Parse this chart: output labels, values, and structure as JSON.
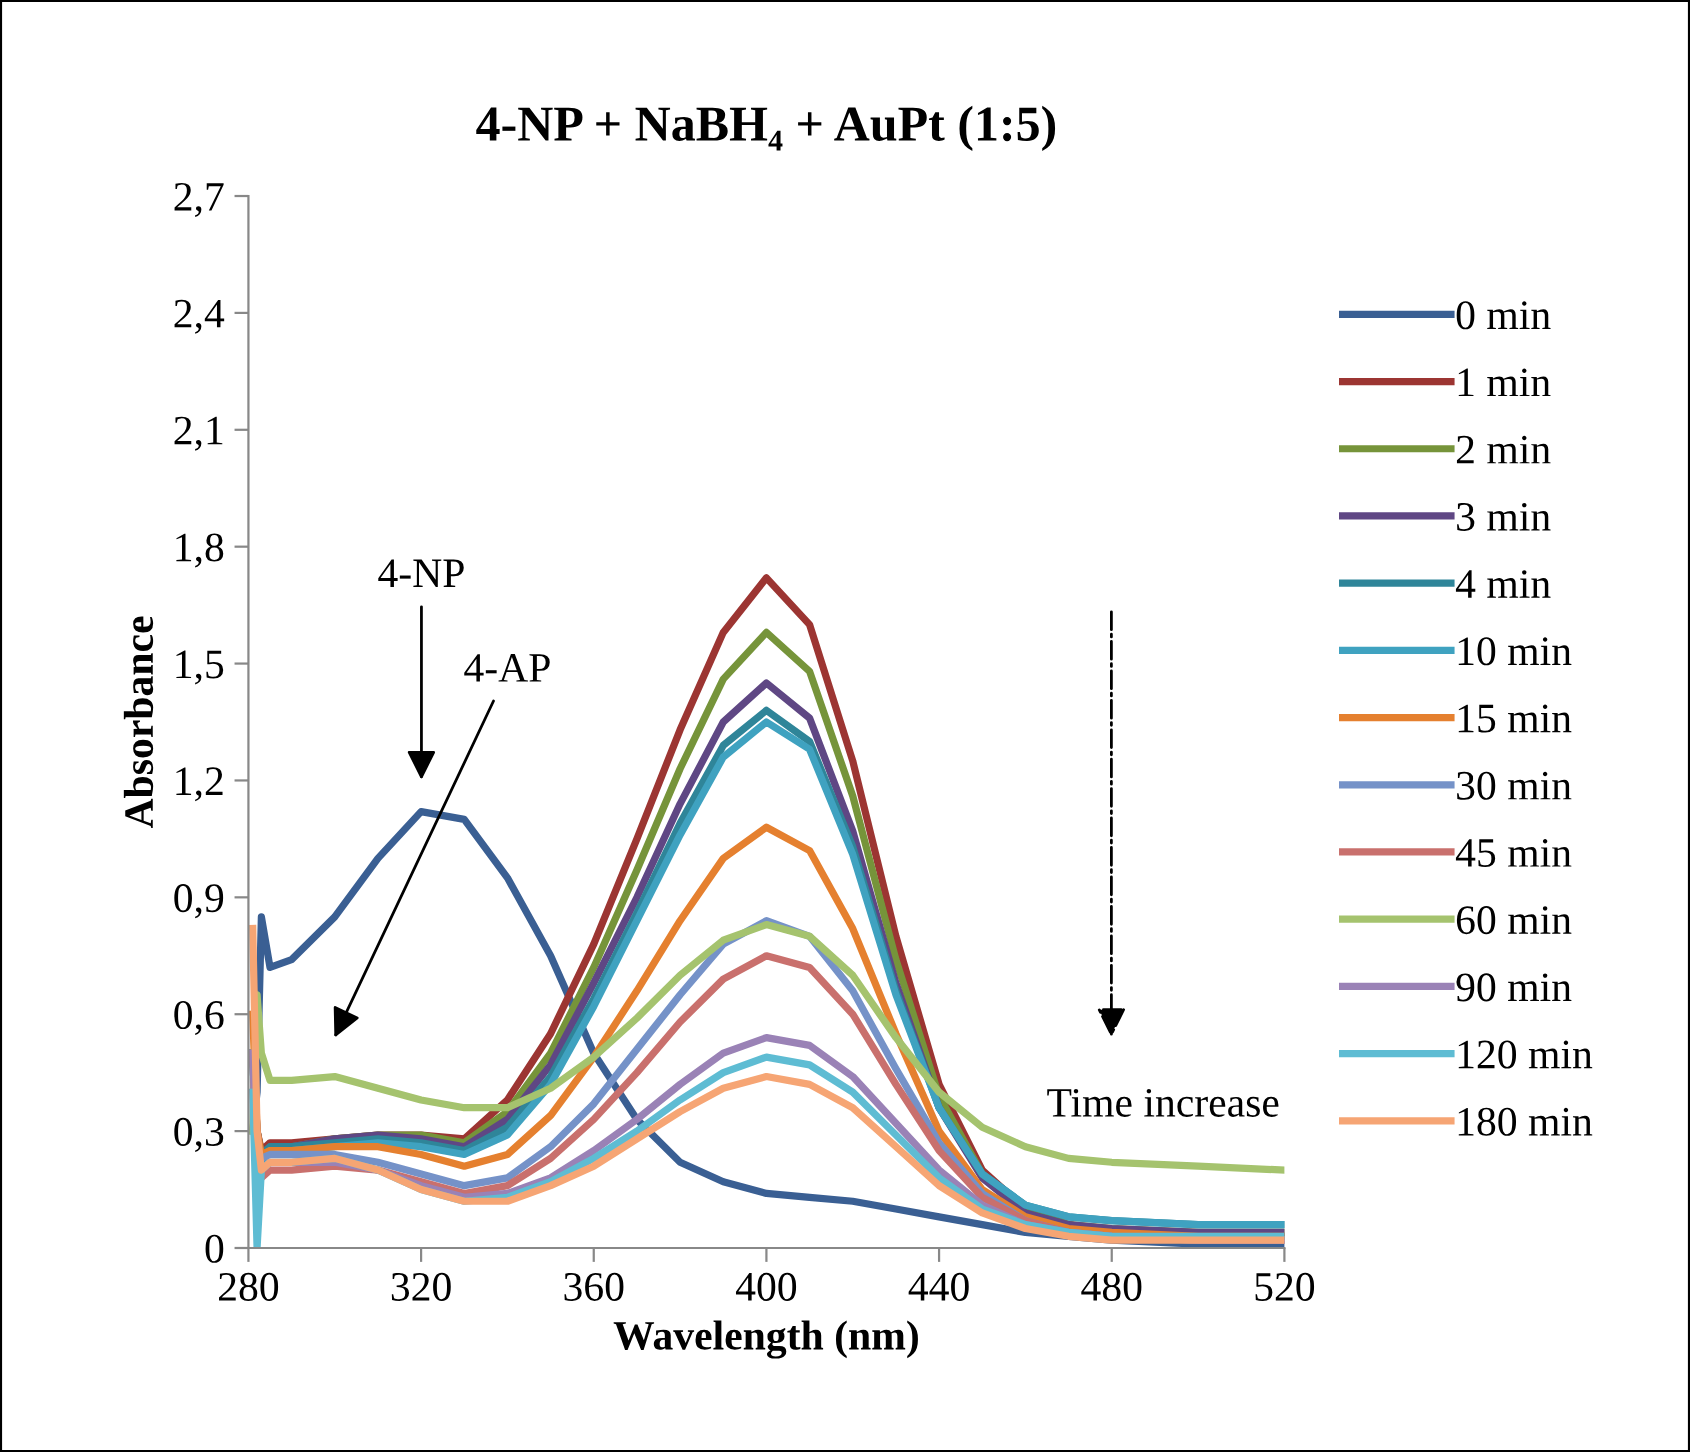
{
  "chart_data": {
    "type": "line",
    "title": "4-NP + NaBH₄ + AuPt (1:5)",
    "xlabel": "Wavelength (nm)",
    "ylabel": "Absorbance",
    "x": [
      281,
      282,
      283,
      285,
      290,
      300,
      310,
      320,
      330,
      340,
      350,
      360,
      370,
      380,
      390,
      400,
      410,
      420,
      430,
      440,
      450,
      460,
      470,
      480,
      500,
      520
    ],
    "series": [
      {
        "name": "0 min",
        "color": "#3a5f93",
        "values": [
          0.3,
          0.4,
          0.85,
          0.72,
          0.74,
          0.85,
          1.0,
          1.12,
          1.1,
          0.95,
          0.75,
          0.5,
          0.33,
          0.22,
          0.17,
          0.14,
          0.13,
          0.12,
          0.1,
          0.08,
          0.06,
          0.04,
          0.03,
          0.02,
          0.01,
          0.01
        ]
      },
      {
        "name": "1 min",
        "color": "#9c3532",
        "values": [
          0.5,
          0.3,
          0.25,
          0.27,
          0.27,
          0.28,
          0.29,
          0.29,
          0.28,
          0.38,
          0.55,
          0.78,
          1.05,
          1.33,
          1.58,
          1.72,
          1.6,
          1.25,
          0.8,
          0.42,
          0.2,
          0.1,
          0.06,
          0.04,
          0.03,
          0.03
        ]
      },
      {
        "name": "2 min",
        "color": "#76943a",
        "values": [
          0.5,
          0.3,
          0.24,
          0.26,
          0.26,
          0.28,
          0.29,
          0.29,
          0.27,
          0.35,
          0.5,
          0.72,
          0.97,
          1.23,
          1.46,
          1.58,
          1.48,
          1.16,
          0.74,
          0.39,
          0.19,
          0.1,
          0.06,
          0.05,
          0.04,
          0.04
        ]
      },
      {
        "name": "3 min",
        "color": "#5f4784",
        "values": [
          0.5,
          0.3,
          0.24,
          0.26,
          0.26,
          0.28,
          0.29,
          0.28,
          0.26,
          0.33,
          0.47,
          0.68,
          0.9,
          1.14,
          1.35,
          1.45,
          1.36,
          1.07,
          0.68,
          0.36,
          0.18,
          0.09,
          0.06,
          0.05,
          0.04,
          0.04
        ]
      },
      {
        "name": "4 min",
        "color": "#2f8599",
        "values": [
          0.5,
          0.2,
          0.24,
          0.26,
          0.26,
          0.27,
          0.28,
          0.27,
          0.25,
          0.31,
          0.44,
          0.64,
          0.86,
          1.09,
          1.29,
          1.38,
          1.3,
          1.03,
          0.66,
          0.36,
          0.19,
          0.11,
          0.08,
          0.07,
          0.06,
          0.06
        ]
      },
      {
        "name": "10 min",
        "color": "#3fa2c0",
        "values": [
          0.5,
          0.1,
          0.22,
          0.25,
          0.25,
          0.26,
          0.27,
          0.26,
          0.24,
          0.29,
          0.42,
          0.62,
          0.84,
          1.06,
          1.26,
          1.35,
          1.28,
          1.01,
          0.65,
          0.36,
          0.19,
          0.11,
          0.08,
          0.07,
          0.06,
          0.06
        ]
      },
      {
        "name": "15 min",
        "color": "#e5802f",
        "values": [
          0.6,
          0.3,
          0.24,
          0.25,
          0.25,
          0.26,
          0.26,
          0.24,
          0.21,
          0.24,
          0.34,
          0.49,
          0.66,
          0.84,
          1.0,
          1.08,
          1.02,
          0.82,
          0.55,
          0.3,
          0.15,
          0.08,
          0.05,
          0.04,
          0.03,
          0.03
        ]
      },
      {
        "name": "30 min",
        "color": "#7592c8",
        "values": [
          0.5,
          0.2,
          0.23,
          0.24,
          0.24,
          0.24,
          0.22,
          0.19,
          0.16,
          0.18,
          0.26,
          0.37,
          0.51,
          0.65,
          0.78,
          0.84,
          0.8,
          0.66,
          0.46,
          0.27,
          0.14,
          0.07,
          0.04,
          0.03,
          0.02,
          0.02
        ]
      },
      {
        "name": "45 min",
        "color": "#c9706d",
        "values": [
          0.5,
          0.2,
          0.18,
          0.2,
          0.2,
          0.21,
          0.2,
          0.17,
          0.14,
          0.16,
          0.23,
          0.33,
          0.45,
          0.58,
          0.69,
          0.75,
          0.72,
          0.6,
          0.42,
          0.25,
          0.13,
          0.07,
          0.04,
          0.03,
          0.02,
          0.02
        ]
      },
      {
        "name": "60 min",
        "color": "#a5c36e",
        "values": [
          0.3,
          0.65,
          0.5,
          0.43,
          0.43,
          0.44,
          0.41,
          0.38,
          0.36,
          0.36,
          0.41,
          0.49,
          0.59,
          0.7,
          0.79,
          0.83,
          0.8,
          0.7,
          0.54,
          0.4,
          0.31,
          0.26,
          0.23,
          0.22,
          0.21,
          0.2
        ]
      },
      {
        "name": "90 min",
        "color": "#9a82b6",
        "values": [
          0.5,
          0.2,
          0.2,
          0.22,
          0.22,
          0.22,
          0.2,
          0.16,
          0.13,
          0.14,
          0.18,
          0.25,
          0.33,
          0.42,
          0.5,
          0.54,
          0.52,
          0.44,
          0.32,
          0.2,
          0.11,
          0.06,
          0.04,
          0.03,
          0.02,
          0.02
        ]
      },
      {
        "name": "120 min",
        "color": "#5ebcd3",
        "values": [
          0.4,
          0.0,
          0.2,
          0.22,
          0.22,
          0.23,
          0.2,
          0.15,
          0.12,
          0.13,
          0.17,
          0.23,
          0.3,
          0.38,
          0.45,
          0.49,
          0.47,
          0.4,
          0.29,
          0.18,
          0.1,
          0.06,
          0.04,
          0.03,
          0.03,
          0.03
        ]
      },
      {
        "name": "180 min",
        "color": "#f6a574",
        "values": [
          0.82,
          0.3,
          0.2,
          0.22,
          0.22,
          0.23,
          0.2,
          0.15,
          0.12,
          0.12,
          0.16,
          0.21,
          0.28,
          0.35,
          0.41,
          0.44,
          0.42,
          0.36,
          0.26,
          0.16,
          0.09,
          0.05,
          0.03,
          0.02,
          0.02,
          0.02
        ]
      }
    ],
    "xlim": [
      280,
      520
    ],
    "xticks": [
      280,
      320,
      360,
      400,
      440,
      480,
      520
    ],
    "ylim": [
      0,
      2.7
    ],
    "yticks": [
      0,
      {
        "value": 0.3,
        "label": "0,3"
      },
      {
        "value": 0.6,
        "label": "0,6"
      },
      {
        "value": 0.9,
        "label": "0,9"
      },
      {
        "value": 1.2,
        "label": "1,2"
      },
      {
        "value": 1.5,
        "label": "1,5"
      },
      {
        "value": 1.8,
        "label": "1,8"
      },
      {
        "value": 2.1,
        "label": "2,1"
      },
      {
        "value": 2.4,
        "label": "2,4"
      },
      {
        "value": 2.7,
        "label": "2,7"
      }
    ],
    "annotations": [
      "4-NP",
      "4-AP",
      "Time increase"
    ],
    "grid": false,
    "legend": "right",
    "marker": "none",
    "line_style": "solid"
  }
}
